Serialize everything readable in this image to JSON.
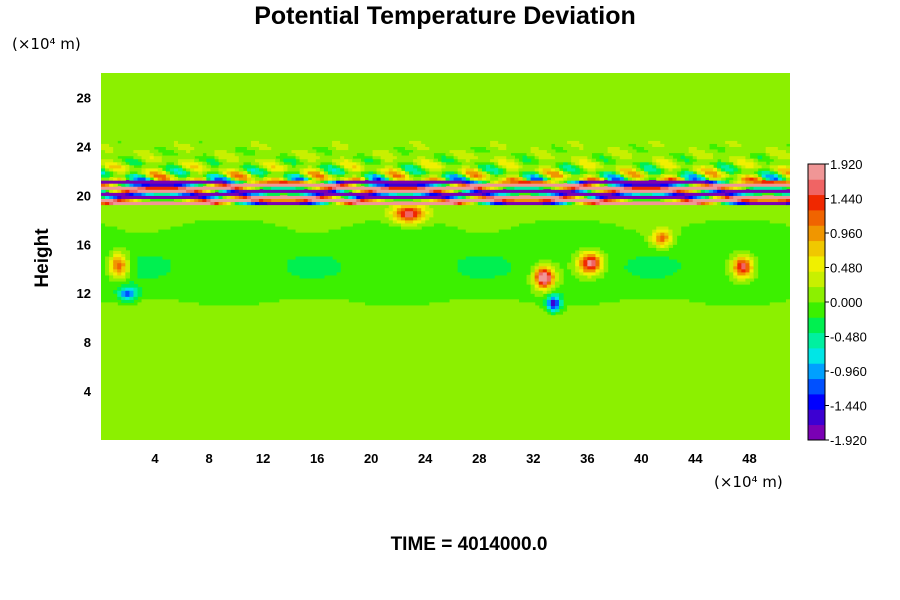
{
  "chart_data": {
    "type": "heatmap",
    "title": "Potential Temperature Deviation",
    "ylabel": "Height",
    "xlabel": "",
    "x_unit": "(×10⁴ m)",
    "y_unit": "(×10⁴ m)",
    "xlim": [
      0,
      51
    ],
    "ylim": [
      0,
      30
    ],
    "x_ticks": [
      "4",
      "8",
      "12",
      "16",
      "20",
      "24",
      "28",
      "32",
      "36",
      "40",
      "44",
      "48"
    ],
    "y_ticks": [
      "4",
      "8",
      "12",
      "16",
      "20",
      "24",
      "28"
    ],
    "colorbar": {
      "min": -1.92,
      "max": 1.92,
      "labels": [
        "1.920",
        "1.440",
        "0.960",
        "0.480",
        "0.000",
        "-0.480",
        "-0.960",
        "-1.440",
        "-1.920"
      ],
      "colors": [
        "#7a00b4",
        "#3c00d2",
        "#0000ff",
        "#0050ff",
        "#00a0ff",
        "#00e6e6",
        "#00f0a0",
        "#00f050",
        "#3cf000",
        "#8cf000",
        "#c8f000",
        "#f0f000",
        "#f0c800",
        "#f09600",
        "#f06400",
        "#f02800",
        "#f06464",
        "#f09696"
      ]
    },
    "features": [
      {
        "description": "strong alternating band",
        "y_range": [
          19.3,
          21.2
        ],
        "x_range": [
          0,
          51
        ]
      },
      {
        "description": "wave band",
        "y_range": [
          21.2,
          24
        ],
        "x_range": [
          0,
          51
        ]
      },
      {
        "description": "slightly cooler layer",
        "y_range": [
          10,
          19
        ],
        "x_range": [
          0,
          51
        ]
      },
      {
        "description": "warm blob",
        "x": 32.8,
        "y": 13.3
      },
      {
        "description": "warm blob",
        "x": 36.2,
        "y": 14.5
      },
      {
        "description": "warm blob",
        "x": 47.5,
        "y": 14.2
      },
      {
        "description": "warm blob",
        "x": 22.8,
        "y": 18.5
      },
      {
        "description": "warm blob",
        "x": 1.3,
        "y": 14.3
      },
      {
        "description": "warm blob",
        "x": 41.5,
        "y": 16.5
      }
    ]
  },
  "footer": {
    "time_text": "TIME = 4014000.0"
  }
}
